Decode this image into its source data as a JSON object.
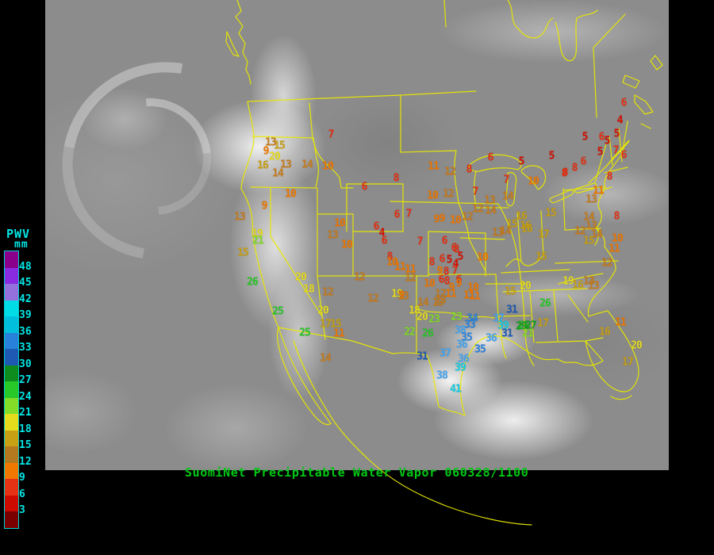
{
  "colors": {
    "background": "#000000",
    "map_outline_yellow": "#e8e800",
    "caption_green": "#00c814",
    "legend_text_cyan": "#00e6e6"
  },
  "caption": {
    "text": "SuomiNet Precipitable Water Vapor 060328/1100"
  },
  "legend": {
    "title": "PWV",
    "unit": "mm",
    "labels": [
      "48",
      "45",
      "42",
      "39",
      "36",
      "33",
      "30",
      "27",
      "24",
      "21",
      "18",
      "15",
      "12",
      "9",
      "6",
      "3"
    ],
    "swatches_top_to_bottom": [
      "#8B008B",
      "#8A2BE2",
      "#9370DB",
      "#00DCE6",
      "#00BEDC",
      "#2882DC",
      "#1E5AB4",
      "#0F8C1E",
      "#28C828",
      "#82DC28",
      "#E6DC1E",
      "#C8A014",
      "#B4781E",
      "#F07800",
      "#E63214",
      "#CC0A00",
      "#7A0000"
    ]
  },
  "pwv_color_bins": {
    "min_value": 3,
    "bin_size": 3,
    "colors_low_to_high": [
      "#D80F00",
      "#E63214",
      "#F07800",
      "#C87D1E",
      "#C8A014",
      "#E6DC1E",
      "#82DC28",
      "#28C828",
      "#14A01E",
      "#1E5AB4",
      "#2882DC",
      "#46A5F0",
      "#14CDE0",
      "#9370DB",
      "#8A2BE2",
      "#8B008B"
    ]
  },
  "stations": [
    [
      7,
      417,
      170
    ],
    [
      13,
      341,
      180
    ],
    [
      15,
      352,
      184
    ],
    [
      9,
      335,
      191
    ],
    [
      20,
      346,
      198
    ],
    [
      16,
      331,
      209
    ],
    [
      13,
      360,
      208
    ],
    [
      14,
      387,
      208
    ],
    [
      10,
      413,
      210
    ],
    [
      14,
      350,
      219
    ],
    [
      10,
      366,
      245
    ],
    [
      9,
      333,
      260
    ],
    [
      13,
      302,
      274
    ],
    [
      10,
      428,
      282
    ],
    [
      19,
      324,
      295
    ],
    [
      21,
      325,
      304
    ],
    [
      13,
      419,
      297
    ],
    [
      10,
      437,
      309
    ],
    [
      15,
      306,
      319
    ],
    [
      26,
      318,
      356
    ],
    [
      20,
      379,
      350
    ],
    [
      18,
      389,
      365
    ],
    [
      12,
      413,
      369
    ],
    [
      20,
      407,
      392
    ],
    [
      25,
      350,
      393
    ],
    [
      25,
      384,
      420
    ],
    [
      17,
      410,
      409
    ],
    [
      15,
      423,
      409
    ],
    [
      11,
      427,
      421
    ],
    [
      14,
      410,
      452
    ],
    [
      8,
      499,
      225
    ],
    [
      6,
      459,
      236
    ],
    [
      11,
      546,
      210
    ],
    [
      12,
      567,
      217
    ],
    [
      8,
      591,
      214
    ],
    [
      10,
      545,
      247
    ],
    [
      12,
      565,
      245
    ],
    [
      6,
      500,
      271
    ],
    [
      7,
      515,
      270
    ],
    [
      9,
      557,
      276
    ],
    [
      6,
      474,
      286
    ],
    [
      4,
      481,
      294
    ],
    [
      6,
      484,
      304
    ],
    [
      7,
      529,
      305
    ],
    [
      6,
      560,
      304
    ],
    [
      8,
      575,
      315
    ],
    [
      8,
      491,
      324
    ],
    [
      10,
      494,
      331
    ],
    [
      11,
      517,
      340
    ],
    [
      12,
      453,
      350
    ],
    [
      12,
      517,
      351
    ],
    [
      12,
      470,
      377
    ],
    [
      6,
      572,
      313
    ],
    [
      5,
      580,
      324
    ],
    [
      6,
      557,
      327
    ],
    [
      5,
      566,
      328
    ],
    [
      4,
      574,
      333
    ],
    [
      10,
      608,
      325
    ],
    [
      8,
      544,
      331
    ],
    [
      9,
      554,
      342
    ],
    [
      8,
      562,
      343
    ],
    [
      7,
      573,
      342
    ],
    [
      6,
      556,
      353
    ],
    [
      8,
      563,
      355
    ],
    [
      6,
      578,
      353
    ],
    [
      9,
      578,
      358
    ],
    [
      9,
      569,
      363
    ],
    [
      10,
      596,
      363
    ],
    [
      10,
      541,
      358
    ],
    [
      12,
      555,
      371
    ],
    [
      11,
      568,
      371
    ],
    [
      11,
      591,
      373
    ],
    [
      13,
      555,
      379
    ],
    [
      19,
      500,
      371
    ],
    [
      13,
      508,
      374
    ],
    [
      14,
      533,
      382
    ],
    [
      13,
      552,
      382
    ],
    [
      15,
      643,
      368
    ],
    [
      11,
      598,
      374
    ],
    [
      11,
      504,
      337
    ],
    [
      9,
      506,
      373
    ],
    [
      18,
      522,
      392
    ],
    [
      20,
      532,
      400
    ],
    [
      23,
      547,
      403
    ],
    [
      23,
      575,
      400
    ],
    [
      34,
      595,
      402
    ],
    [
      33,
      592,
      410
    ],
    [
      38,
      580,
      417
    ],
    [
      37,
      628,
      402
    ],
    [
      39,
      634,
      411
    ],
    [
      31,
      645,
      391
    ],
    [
      22,
      516,
      419
    ],
    [
      26,
      539,
      421
    ],
    [
      31,
      639,
      421
    ],
    [
      36,
      619,
      427
    ],
    [
      35,
      588,
      426
    ],
    [
      36,
      582,
      435
    ],
    [
      35,
      605,
      441
    ],
    [
      31,
      532,
      450
    ],
    [
      37,
      561,
      446
    ],
    [
      36,
      584,
      453
    ],
    [
      39,
      580,
      464
    ],
    [
      38,
      557,
      474
    ],
    [
      41,
      574,
      491
    ],
    [
      25,
      660,
      411
    ],
    [
      6,
      618,
      199
    ],
    [
      5,
      657,
      204
    ],
    [
      5,
      695,
      197
    ],
    [
      8,
      712,
      218
    ],
    [
      7,
      638,
      227
    ],
    [
      10,
      672,
      229
    ],
    [
      7,
      599,
      242
    ],
    [
      13,
      617,
      253
    ],
    [
      14,
      640,
      248
    ],
    [
      12,
      602,
      264
    ],
    [
      14,
      618,
      266
    ],
    [
      9,
      550,
      277
    ],
    [
      10,
      574,
      278
    ],
    [
      12,
      589,
      274
    ],
    [
      16,
      657,
      273
    ],
    [
      15,
      645,
      283
    ],
    [
      16,
      662,
      285
    ],
    [
      14,
      637,
      292
    ],
    [
      13,
      627,
      294
    ],
    [
      17,
      685,
      296
    ],
    [
      15,
      694,
      269
    ],
    [
      6,
      786,
      130
    ],
    [
      4,
      781,
      152
    ],
    [
      5,
      777,
      169
    ],
    [
      5,
      765,
      178
    ],
    [
      5,
      737,
      173
    ],
    [
      6,
      758,
      173
    ],
    [
      5,
      756,
      192
    ],
    [
      7,
      776,
      190
    ],
    [
      6,
      786,
      196
    ],
    [
      6,
      735,
      204
    ],
    [
      8,
      724,
      212
    ],
    [
      8,
      711,
      219
    ],
    [
      8,
      768,
      223
    ],
    [
      11,
      754,
      241
    ],
    [
      13,
      745,
      252
    ],
    [
      14,
      742,
      274
    ],
    [
      13,
      745,
      285
    ],
    [
      8,
      777,
      273
    ],
    [
      12,
      731,
      292
    ],
    [
      14,
      752,
      296
    ],
    [
      15,
      742,
      304
    ],
    [
      10,
      778,
      301
    ],
    [
      11,
      774,
      314
    ],
    [
      16,
      664,
      289
    ],
    [
      15,
      682,
      324
    ],
    [
      12,
      765,
      332
    ],
    [
      19,
      716,
      355
    ],
    [
      13,
      742,
      355
    ],
    [
      20,
      662,
      361
    ],
    [
      16,
      728,
      360
    ],
    [
      13,
      748,
      361
    ],
    [
      26,
      687,
      383
    ],
    [
      29,
      657,
      412
    ],
    [
      27,
      669,
      411
    ],
    [
      17,
      684,
      408
    ],
    [
      21,
      665,
      421
    ],
    [
      11,
      782,
      407
    ],
    [
      16,
      762,
      419
    ],
    [
      20,
      802,
      436
    ],
    [
      17,
      791,
      457
    ]
  ]
}
